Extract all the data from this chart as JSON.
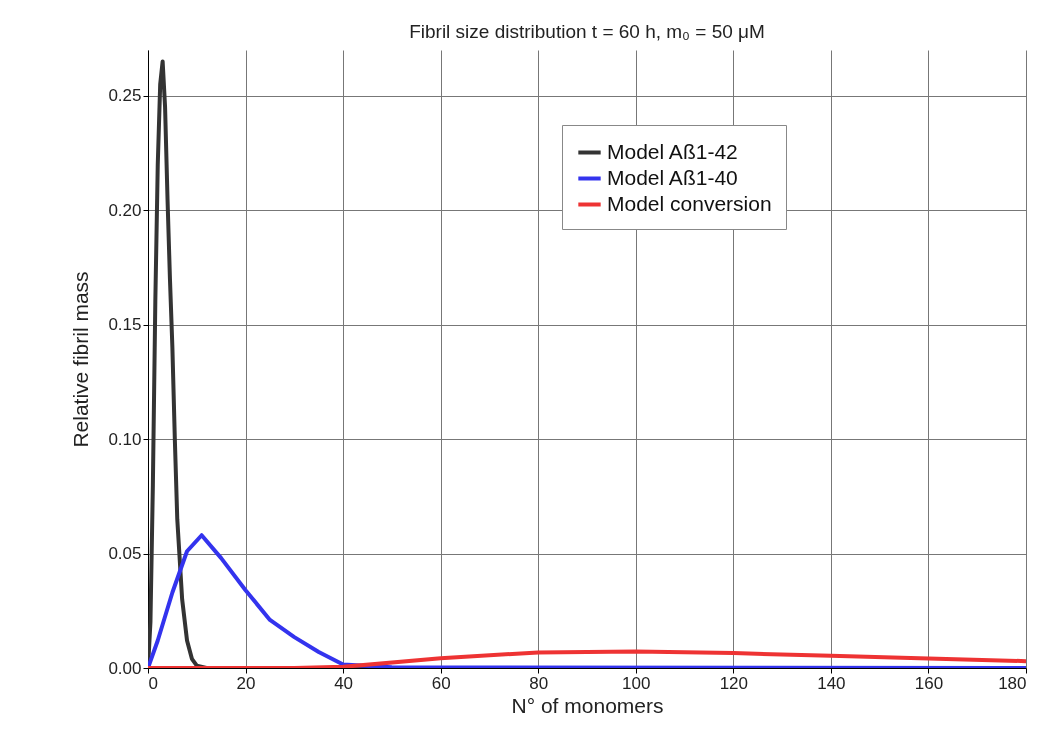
{
  "chart_data": {
    "type": "line",
    "title": "Fibril size distribution t = 60 h, m₀ = 50 μM",
    "xlabel": "N° of monomers",
    "ylabel": "Relative fibril mass",
    "series": [
      {
        "name": "Model Aß1-42",
        "color": "#333333",
        "x": [
          0,
          0.5,
          1,
          1.5,
          2,
          2.5,
          3,
          3.5,
          4,
          4.5,
          5,
          5.5,
          6,
          7,
          8,
          9,
          10,
          12,
          180
        ],
        "values": [
          0,
          0.02,
          0.08,
          0.16,
          0.22,
          0.255,
          0.265,
          0.245,
          0.205,
          0.17,
          0.14,
          0.1,
          0.065,
          0.03,
          0.012,
          0.004,
          0.001,
          0,
          0
        ]
      },
      {
        "name": "Model Aß1-40",
        "color": "#3333ee",
        "x": [
          0,
          2,
          5,
          8,
          11,
          15,
          20,
          25,
          30,
          35,
          40,
          50,
          180
        ],
        "values": [
          0,
          0.012,
          0.033,
          0.051,
          0.058,
          0.048,
          0.034,
          0.021,
          0.0135,
          0.007,
          0.0015,
          0.0003,
          0
        ]
      },
      {
        "name": "Model conversion",
        "color": "#ee3333",
        "x": [
          0,
          30,
          40,
          60,
          80,
          100,
          120,
          140,
          160,
          180
        ],
        "values": [
          0,
          0,
          0.0005,
          0.0043,
          0.0068,
          0.0072,
          0.0065,
          0.0053,
          0.0042,
          0.003
        ]
      }
    ],
    "xlim": [
      0,
      180
    ],
    "xticks": [
      0,
      20,
      40,
      60,
      80,
      100,
      120,
      140,
      160,
      180
    ],
    "ylim": [
      0,
      0.27
    ],
    "yticks": [
      {
        "value": 0,
        "label": "0.00"
      },
      {
        "value": 0.05,
        "label": "0.05"
      },
      {
        "value": 0.1,
        "label": "0.10"
      },
      {
        "value": 0.15,
        "label": "0.15"
      },
      {
        "value": 0.2,
        "label": "0.20"
      },
      {
        "value": 0.25,
        "label": "0.25"
      }
    ],
    "grid": true,
    "legend": "top right",
    "line_style": "solid"
  }
}
